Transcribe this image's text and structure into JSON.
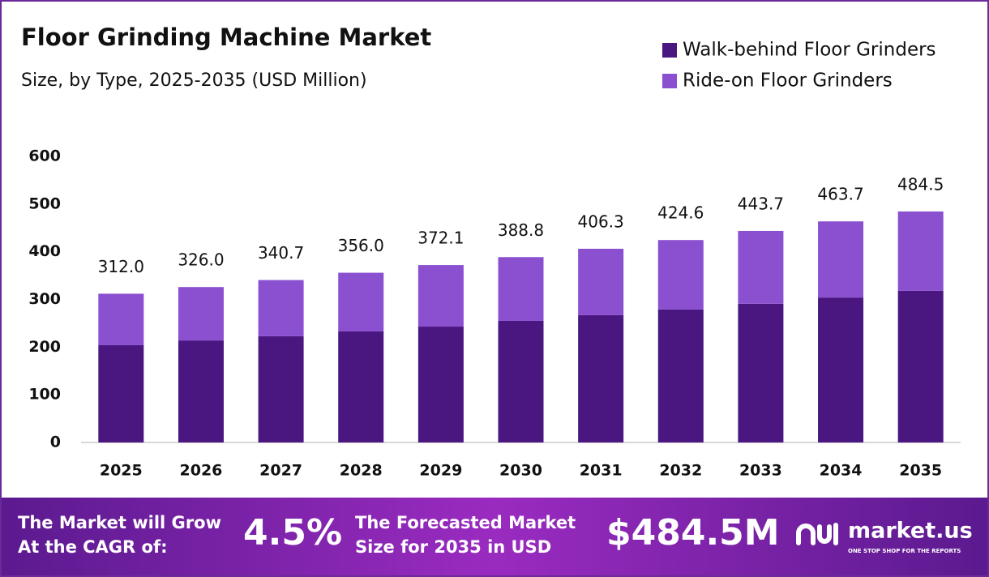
{
  "chart_data": {
    "type": "stacked_bar",
    "title": "Floor Grinding Machine Market",
    "subtitle": "Size, by Type, 2025-2035 (USD Million)",
    "categories": [
      "2025",
      "2026",
      "2027",
      "2028",
      "2029",
      "2030",
      "2031",
      "2032",
      "2033",
      "2034",
      "2035"
    ],
    "series": [
      {
        "name": "Walk-behind Floor Grinders",
        "color": "#4a1680",
        "values": [
          204,
          214,
          223,
          233,
          243,
          255,
          267,
          279,
          291,
          304,
          318
        ]
      },
      {
        "name": "Ride-on Floor Grinders",
        "color": "#8b50d0",
        "values": [
          108,
          112,
          117.7,
          123,
          129.1,
          133.8,
          139.3,
          145.6,
          152.7,
          159.7,
          166.5
        ]
      }
    ],
    "totals": [
      312,
      326,
      340.7,
      356,
      372.1,
      388.8,
      406.3,
      424.6,
      443.7,
      463.7,
      484.5
    ],
    "total_labels": [
      "312.0",
      "326.0",
      "340.7",
      "356.0",
      "372.1",
      "388.8",
      "406.3",
      "424.6",
      "443.7",
      "463.7",
      "484.5"
    ],
    "ylim": [
      0,
      600
    ],
    "yticks": [
      0,
      100,
      200,
      300,
      400,
      500,
      600
    ],
    "grid": false,
    "legend": "top-right"
  },
  "footer": {
    "cagr_text": [
      "The Market will Grow",
      "At the CAGR of:"
    ],
    "cagr": "4.5%",
    "size_text": [
      "The Forecasted Market",
      "Size for 2035 in USD"
    ],
    "size": "$484.5M",
    "brand": "market.us",
    "tagline": "ONE STOP SHOP FOR THE REPORTS"
  }
}
